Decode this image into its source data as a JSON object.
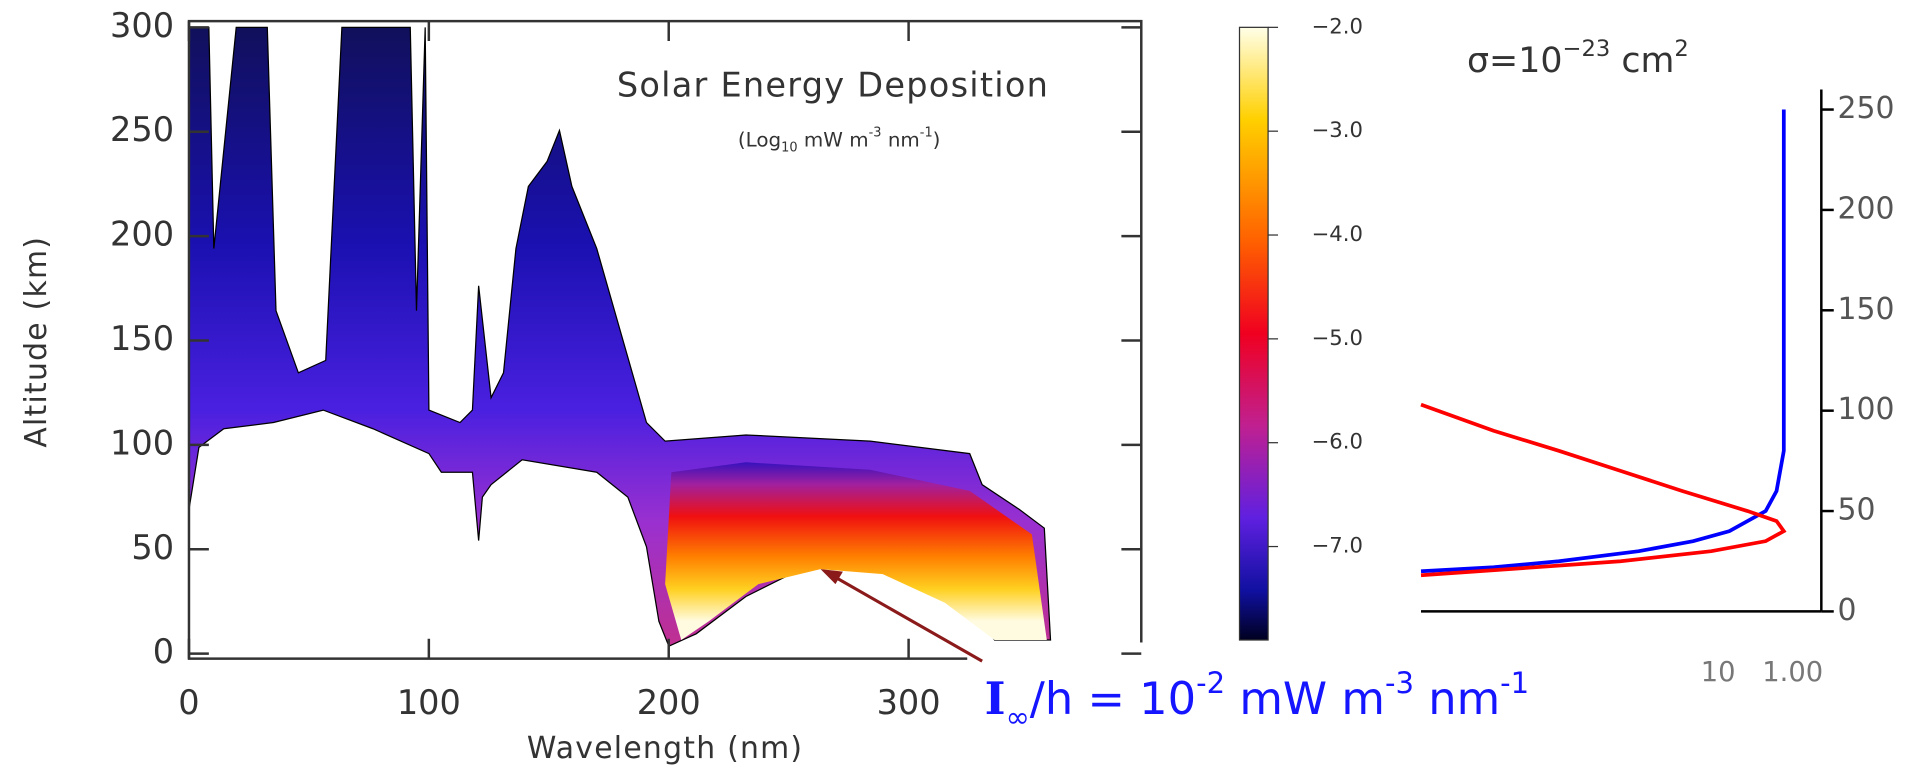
{
  "chart_data": [
    {
      "type": "heatmap",
      "title": "Solar Energy Deposition",
      "subtitle": [
        {
          "text": "(Log"
        },
        {
          "text": "10",
          "shift": "sub"
        },
        {
          "text": " mW m"
        },
        {
          "text": "-3",
          "shift": "super"
        },
        {
          "text": " nm"
        },
        {
          "text": "-1",
          "shift": "super"
        },
        {
          "text": ")"
        }
      ],
      "x_label": "Wavelength (nm)",
      "y_label": "Altitude (km)",
      "xlim": [
        0,
        397
      ],
      "ylim": [
        0,
        300
      ],
      "xticks": [
        0,
        100,
        200,
        300
      ],
      "yticks": [
        0,
        50,
        100,
        150,
        200,
        250,
        300
      ],
      "colorbar": {
        "lim": [
          -7.9,
          -2.0
        ],
        "ticks": [
          {
            "value": -2,
            "label": "−2.0"
          },
          {
            "value": -3,
            "label": "−3.0"
          },
          {
            "value": -4,
            "label": "−4.0"
          },
          {
            "value": -5,
            "label": "−5.0"
          },
          {
            "value": -6,
            "label": "−6.0"
          },
          {
            "value": -7,
            "label": "−7.0"
          }
        ]
      }
    },
    {
      "type": "line",
      "title": [
        {
          "text": "σ=10"
        },
        {
          "text": "−23",
          "shift": "super"
        },
        {
          "text": " cm"
        },
        {
          "text": "2",
          "shift": "super"
        }
      ],
      "xlim": [
        0,
        1.1
      ],
      "ylim": [
        0,
        260
      ],
      "yticks": [
        0,
        50,
        100,
        150,
        200,
        250
      ],
      "x_tick_labels": [
        "10",
        "1.00"
      ],
      "series": [
        {
          "color": "#0000ff",
          "x": [
            0,
            0.2,
            0.38,
            0.6,
            0.75,
            0.85,
            0.95,
            0.98,
            1.0,
            1.0,
            1.0,
            1.0
          ],
          "y": [
            20,
            22,
            25,
            30,
            35,
            40,
            50,
            60,
            80,
            100,
            150,
            250
          ]
        },
        {
          "color": "#ff0000",
          "x": [
            0,
            0.55,
            0.8,
            0.95,
            1.0,
            0.98,
            0.9,
            0.72,
            0.55,
            0.38,
            0.2,
            0
          ],
          "y": [
            18,
            25,
            30,
            35,
            40,
            45,
            50,
            60,
            70,
            80,
            90,
            103
          ]
        }
      ]
    }
  ],
  "annotation": [
    {
      "text": "I"
    },
    {
      "text": "∞",
      "shift": "sub"
    },
    {
      "text": "/h = 10"
    },
    {
      "text": "-2",
      "shift": "super"
    },
    {
      "text": " mW m"
    },
    {
      "text": "-3",
      "shift": "super"
    },
    {
      "text": " nm"
    },
    {
      "text": "-1",
      "shift": "super"
    }
  ]
}
